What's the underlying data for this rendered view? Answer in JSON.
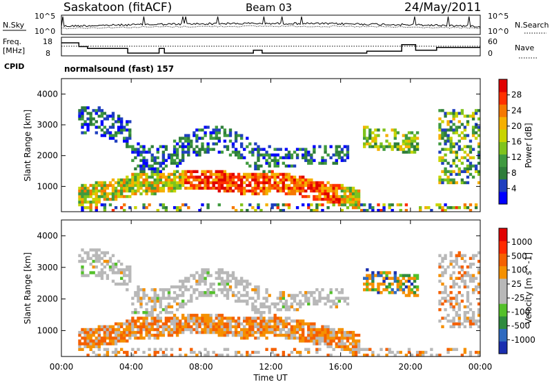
{
  "header": {
    "station": "Saskatoon (fitACF)",
    "beam": "Beam 03",
    "date": "24/May/2011"
  },
  "noise_panel": {
    "left_label": "N.Sky",
    "right_label": "N.Search",
    "left_ticks": [
      "10^5",
      "10^0"
    ],
    "right_ticks": [
      "10^5",
      "10^0"
    ]
  },
  "freq_panel": {
    "left_label_1": "Freq.",
    "left_label_2": "[MHz]",
    "right_label": "Nave",
    "left_ticks": [
      "18",
      "8"
    ],
    "right_ticks": [
      "60",
      "0"
    ]
  },
  "cpid": {
    "label": "CPID",
    "text": "normalsound (fast) 157"
  },
  "colors": {
    "power": [
      "#0000ff",
      "#1f3fbf",
      "#2e7d3a",
      "#3f9a3f",
      "#7fc31c",
      "#c8d400",
      "#f5b000",
      "#f57800",
      "#ff3000",
      "#e00000"
    ],
    "velocity": [
      "#1a2fb0",
      "#2f6abf",
      "#2e8b3e",
      "#53c02a",
      "#b8b8b8",
      "#b8b8b8",
      "#f59000",
      "#f56000",
      "#ff2a00",
      "#e00000"
    ]
  },
  "chart_data": [
    {
      "type": "heatmap",
      "title": "",
      "xlabel": "",
      "ylabel": "Slant Range [km]",
      "xlim": [
        0,
        24
      ],
      "ylim": [
        180,
        4500
      ],
      "x_ticks": [
        "00:00",
        "04:00",
        "08:00",
        "12:00",
        "16:00",
        "20:00",
        "00:00"
      ],
      "y_ticks": [
        "1000",
        "2000",
        "3000",
        "4000"
      ],
      "colorbar_label": "Power [dB]",
      "colorbar_ticks": [
        "4",
        "8",
        "12",
        "16",
        "20",
        "24",
        "28"
      ],
      "colorbar_range": [
        0,
        30
      ],
      "regions": [
        {
          "name": "low range band",
          "t": [
            1,
            17.2
          ],
          "r": [
            500,
            1600
          ],
          "level": "strong"
        },
        {
          "name": "E-region echoes",
          "t": [
            7.5,
            16.5
          ],
          "r": [
            900,
            1700
          ],
          "level": "strong"
        },
        {
          "name": "upper band",
          "t": [
            1,
            11.5
          ],
          "r": [
            1800,
            3600
          ],
          "level": "weak"
        },
        {
          "name": "late echoes",
          "t": [
            16.5,
            24
          ],
          "r": [
            1000,
            3600
          ],
          "level": "moderate"
        }
      ]
    },
    {
      "type": "heatmap",
      "title": "",
      "xlabel": "Time UT",
      "ylabel": "Slant Range [km]",
      "xlim": [
        0,
        24
      ],
      "ylim": [
        180,
        4500
      ],
      "x_ticks": [
        "00:00",
        "04:00",
        "08:00",
        "12:00",
        "16:00",
        "20:00",
        "00:00"
      ],
      "y_ticks": [
        "1000",
        "2000",
        "3000",
        "4000"
      ],
      "colorbar_label": "Velocity [m s^-1]",
      "colorbar_ticks": [
        "1000",
        "500",
        "100",
        "25",
        "-25",
        "-100",
        "-500",
        "-1000"
      ],
      "colorbar_range": [
        -1000,
        1000
      ],
      "regions": [
        {
          "name": "low range band",
          "t": [
            1,
            17.2
          ],
          "r": [
            500,
            1600
          ],
          "level": "away"
        },
        {
          "name": "upper band",
          "t": [
            1,
            12
          ],
          "r": [
            1700,
            3600
          ],
          "level": "ground"
        },
        {
          "name": "late echoes",
          "t": [
            17.5,
            19.5
          ],
          "r": [
            2300,
            2900
          ],
          "level": "toward"
        }
      ]
    }
  ]
}
